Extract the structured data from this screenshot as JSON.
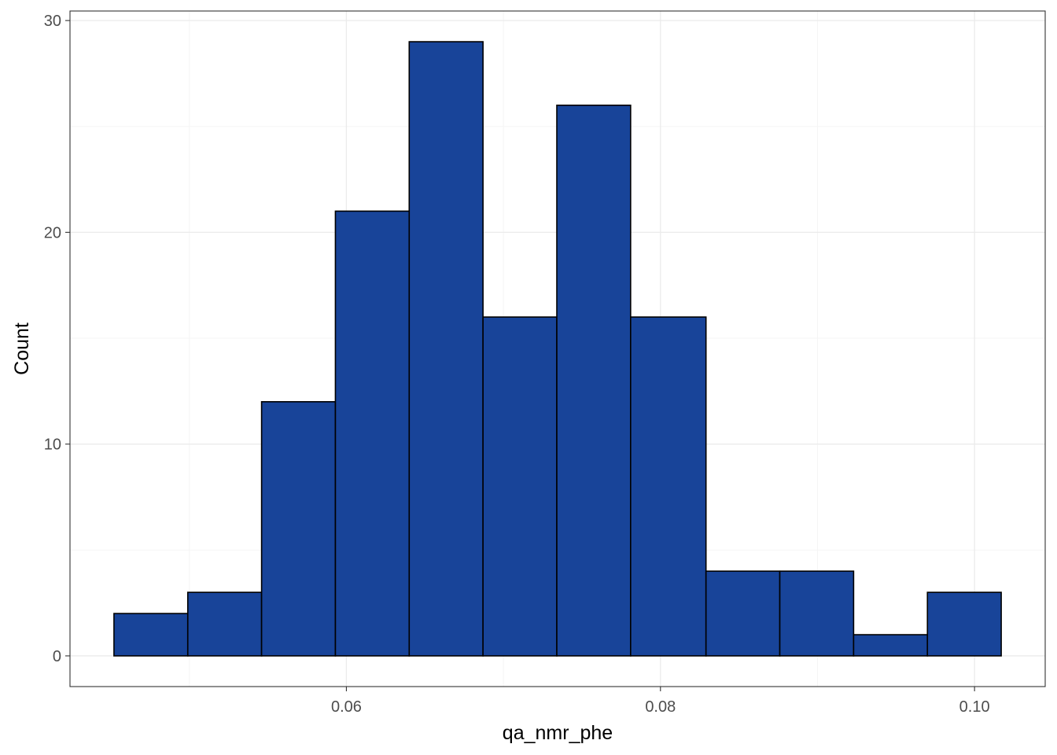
{
  "chart_data": {
    "type": "bar",
    "subtype": "histogram",
    "title": "",
    "xlabel": "qa_nmr_phe",
    "ylabel": "Count",
    "bins": [
      {
        "x0": 0.0452,
        "x1": 0.0499,
        "count": 2
      },
      {
        "x0": 0.0499,
        "x1": 0.0546,
        "count": 3
      },
      {
        "x0": 0.0546,
        "x1": 0.0593,
        "count": 12
      },
      {
        "x0": 0.0593,
        "x1": 0.064,
        "count": 21
      },
      {
        "x0": 0.064,
        "x1": 0.0687,
        "count": 29
      },
      {
        "x0": 0.0687,
        "x1": 0.0734,
        "count": 16
      },
      {
        "x0": 0.0734,
        "x1": 0.0781,
        "count": 26
      },
      {
        "x0": 0.0781,
        "x1": 0.0829,
        "count": 16
      },
      {
        "x0": 0.0829,
        "x1": 0.0876,
        "count": 4
      },
      {
        "x0": 0.0876,
        "x1": 0.0923,
        "count": 4
      },
      {
        "x0": 0.0923,
        "x1": 0.097,
        "count": 1
      },
      {
        "x0": 0.097,
        "x1": 0.1017,
        "count": 3
      }
    ],
    "xlim": [
      0.0424,
      0.1045
    ],
    "ylim": [
      -1.45,
      30.45
    ],
    "xticks": [
      0.06,
      0.08,
      0.1
    ],
    "xtick_labels": [
      "0.06",
      "0.08",
      "0.10"
    ],
    "yticks": [
      0,
      10,
      20,
      30
    ],
    "ytick_labels": [
      "0",
      "10",
      "20",
      "30"
    ],
    "grid": true,
    "legend": "none",
    "colors": {
      "bar_fill": "#184499",
      "bar_outline": "#000000",
      "grid_major": "#ebebeb",
      "grid_minor": "#f5f5f5",
      "panel_border": "#333333",
      "tick_text": "#4d4d4d"
    }
  }
}
